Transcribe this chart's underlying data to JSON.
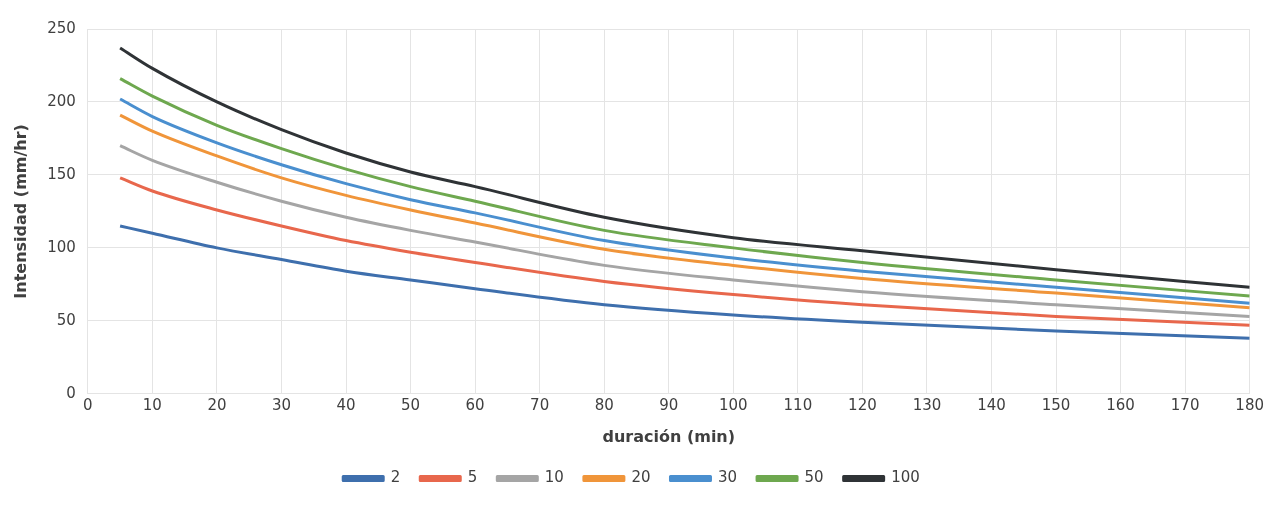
{
  "chart_data": {
    "type": "line",
    "xlabel": "duración (min)",
    "ylabel": "Intensidad (mm/hr)",
    "x": [
      5,
      10,
      20,
      30,
      40,
      50,
      60,
      80,
      100,
      120,
      150,
      180
    ],
    "xlim": [
      0,
      180
    ],
    "xticks": [
      0,
      10,
      20,
      30,
      40,
      50,
      60,
      70,
      80,
      90,
      100,
      110,
      120,
      130,
      140,
      150,
      160,
      170,
      180
    ],
    "ylim": [
      0,
      250
    ],
    "yticks": [
      0,
      50,
      100,
      150,
      200,
      250
    ],
    "grid": true,
    "legend": "bottom",
    "marker": "none",
    "line_style": "solid",
    "series": [
      {
        "name": "2",
        "color": "#3e6fad",
        "values": [
          115,
          110,
          100,
          92,
          84,
          78,
          72,
          61,
          54,
          49,
          43,
          38
        ]
      },
      {
        "name": "5",
        "color": "#e8674c",
        "values": [
          148,
          139,
          126,
          115,
          105,
          97,
          90,
          77,
          68,
          61,
          53,
          47
        ]
      },
      {
        "name": "10",
        "color": "#a5a5a5",
        "values": [
          170,
          160,
          145,
          132,
          121,
          112,
          104,
          88,
          78,
          70,
          61,
          53
        ]
      },
      {
        "name": "20",
        "color": "#f0953a",
        "values": [
          191,
          180,
          163,
          148,
          136,
          126,
          117,
          99,
          88,
          79,
          69,
          59
        ]
      },
      {
        "name": "30",
        "color": "#4a8fcf",
        "values": [
          202,
          190,
          172,
          157,
          144,
          133,
          124,
          105,
          93,
          84,
          73,
          62
        ]
      },
      {
        "name": "50",
        "color": "#6ea84f",
        "values": [
          216,
          204,
          184,
          168,
          154,
          142,
          132,
          112,
          100,
          90,
          78,
          67
        ]
      },
      {
        "name": "100",
        "color": "#2f3336",
        "values": [
          237,
          223,
          200,
          181,
          165,
          152,
          142,
          121,
          107,
          98,
          85,
          73
        ]
      }
    ]
  }
}
